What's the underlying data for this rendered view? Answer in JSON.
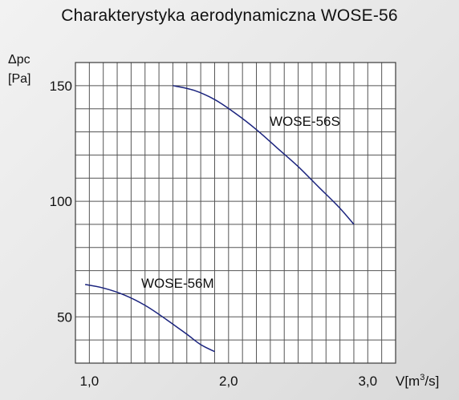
{
  "chart_data": {
    "type": "line",
    "title": "Charakterystyka aerodynamiczna WOSE-56",
    "ylabel_line1": "Δpc",
    "ylabel_line2": "[Pa]",
    "xunit_prefix": "V[m",
    "xunit_sup": "3",
    "xunit_suffix": "/s]",
    "xlim": [
      0.9,
      3.2
    ],
    "ylim": [
      30,
      160
    ],
    "x_ticks": [
      {
        "value": 1.0,
        "label": "1,0"
      },
      {
        "value": 2.0,
        "label": "2,0"
      },
      {
        "value": 3.0,
        "label": "3,0"
      }
    ],
    "y_ticks": [
      {
        "value": 50,
        "label": "50"
      },
      {
        "value": 100,
        "label": "100"
      },
      {
        "value": 150,
        "label": "150"
      }
    ],
    "grid": true,
    "series": [
      {
        "name": "WOSE-56S",
        "color": "#1a237e",
        "points": [
          [
            1.6,
            150
          ],
          [
            1.75,
            148
          ],
          [
            1.9,
            144
          ],
          [
            2.05,
            138
          ],
          [
            2.2,
            131
          ],
          [
            2.35,
            123
          ],
          [
            2.5,
            115
          ],
          [
            2.65,
            106
          ],
          [
            2.8,
            97
          ],
          [
            2.9,
            90
          ]
        ]
      },
      {
        "name": "WOSE-56M",
        "color": "#1a237e",
        "points": [
          [
            0.97,
            64
          ],
          [
            1.1,
            62.5
          ],
          [
            1.25,
            59.5
          ],
          [
            1.4,
            55
          ],
          [
            1.55,
            49
          ],
          [
            1.7,
            42.5
          ],
          [
            1.8,
            38
          ],
          [
            1.9,
            35
          ]
        ]
      }
    ]
  }
}
